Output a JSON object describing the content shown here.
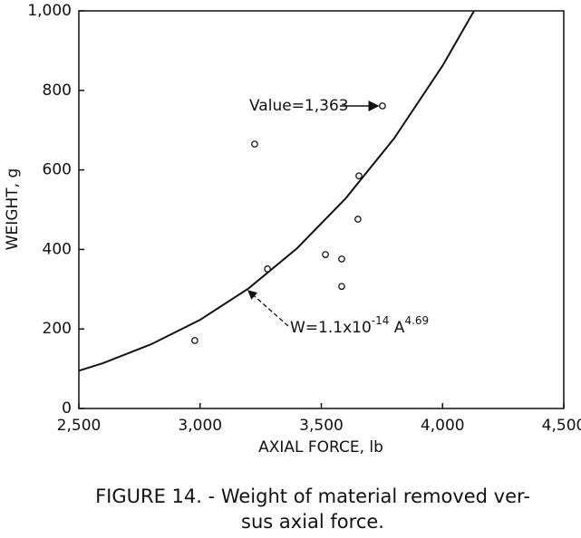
{
  "chart_data": {
    "type": "scatter",
    "xlabel": "AXIAL FORCE, lb",
    "ylabel": "WEIGHT, g",
    "caption": [
      "FIGURE 14. - Weight of material removed ver-",
      "sus axial force."
    ],
    "xlim": [
      2500,
      4500
    ],
    "ylim": [
      0,
      1000
    ],
    "xticks": [
      {
        "value": 2500,
        "label": "2,500"
      },
      {
        "value": 3000,
        "label": "3,000"
      },
      {
        "value": 3500,
        "label": "3,500"
      },
      {
        "value": 4000,
        "label": "4,000"
      },
      {
        "value": 4500,
        "label": "4,500"
      }
    ],
    "yticks": [
      0,
      200,
      400,
      600,
      800,
      {
        "value": 1000,
        "label": "1,000"
      }
    ],
    "grid": false,
    "series": [
      {
        "type": "line",
        "color": "#111",
        "x": [
          2500,
          2600,
          2800,
          3000,
          3200,
          3400,
          3600,
          3800,
          4000,
          4130
        ],
        "values": [
          95,
          114,
          162,
          223,
          302,
          403,
          528,
          679,
          862,
          1000
        ]
      },
      {
        "type": "scatter",
        "color": "#111",
        "x": [
          2978,
          3225,
          3278,
          3517,
          3584,
          3584,
          3655,
          3651,
          3752
        ],
        "values": [
          171,
          665,
          351,
          387,
          376,
          307,
          585,
          476,
          761
        ]
      }
    ],
    "annotations": {
      "point_note": "Value=1,363",
      "fit": {
        "base": "W=1.1x10",
        "exp": "-14",
        "var": " A",
        "var_exp": "4.69"
      }
    }
  }
}
